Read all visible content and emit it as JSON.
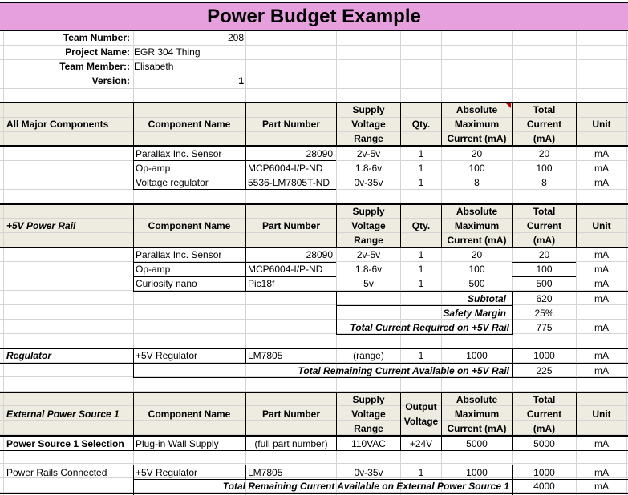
{
  "title": "Power Budget Example",
  "meta": {
    "team_number_label": "Team Number:",
    "team_number": "208",
    "project_name_label": "Project Name:",
    "project_name": "EGR 304 Thing",
    "team_member_label": "Team Member::",
    "team_member": "Elisabeth",
    "version_label": "Version:",
    "version": "1"
  },
  "headers": {
    "component_name": "Component Name",
    "part_number": "Part Number",
    "supply_voltage": [
      "Supply",
      "Voltage",
      "Range"
    ],
    "qty": "Qty.",
    "abs_max": [
      "Absolute",
      "Maximum",
      "Current (mA)"
    ],
    "total_current": [
      "Total",
      "Current",
      "(mA)"
    ],
    "unit": "Unit",
    "output_voltage": [
      "Output",
      "Voltage"
    ]
  },
  "section1": {
    "label": "All Major Components",
    "rows": [
      {
        "name": "Parallax Inc. Sensor",
        "part": "28090",
        "voltage": "2v-5v",
        "qty": "1",
        "abs": "20",
        "total": "20",
        "unit": "mA"
      },
      {
        "name": "Op-amp",
        "part": "MCP6004-I/P-ND",
        "voltage": "1.8-6v",
        "qty": "1",
        "abs": "100",
        "total": "100",
        "unit": "mA"
      },
      {
        "name": "Voltage regulator",
        "part": "5536-LM7805T-ND",
        "voltage": "0v-35v",
        "qty": "1",
        "abs": "8",
        "total": "8",
        "unit": "mA"
      }
    ]
  },
  "section2": {
    "label": "+5V Power Rail",
    "rows": [
      {
        "name": "Parallax Inc. Sensor",
        "part": "28090",
        "voltage": "2v-5v",
        "qty": "1",
        "abs": "20",
        "total": "20",
        "unit": "mA"
      },
      {
        "name": "Op-amp",
        "part": "MCP6004-I/P-ND",
        "voltage": "1.8-6v",
        "qty": "1",
        "abs": "100",
        "total": "100",
        "unit": "mA"
      },
      {
        "name": "Curiosity nano",
        "part": "Pic18f",
        "voltage": "5v",
        "qty": "1",
        "abs": "500",
        "total": "500",
        "unit": "mA"
      }
    ],
    "subtotal_label": "Subtotal",
    "subtotal": "620",
    "subtotal_unit": "mA",
    "safety_label": "Safety Margin",
    "safety": "25%",
    "required_label": "Total Current Required on +5V Rail",
    "required": "775",
    "required_unit": "mA"
  },
  "regulator": {
    "label": "Regulator",
    "name": "+5V Regulator",
    "part": "LM7805",
    "voltage": "(range)",
    "qty": "1",
    "abs": "1000",
    "total": "1000",
    "unit": "mA",
    "remaining_label": "Total Remaining Current Available on +5V Rail",
    "remaining": "225",
    "remaining_unit": "mA"
  },
  "section3": {
    "label": "External Power Source 1",
    "selection_label": "Power Source 1 Selection",
    "selection": {
      "name": "Plug-in Wall Supply",
      "part": "(full part number)",
      "voltage": "110VAC",
      "output": "+24V",
      "abs": "5000",
      "total": "5000",
      "unit": "mA"
    },
    "rails_label": "Power Rails Connected",
    "rails": {
      "name": "+5V Regulator",
      "part": "LM7805",
      "voltage": "0v-35v",
      "qty": "1",
      "abs": "1000",
      "total": "1000",
      "unit": "mA"
    },
    "remaining_label": "Total Remaining Current Available on External Power Source 1",
    "remaining": "4000",
    "remaining_unit": "mA"
  }
}
